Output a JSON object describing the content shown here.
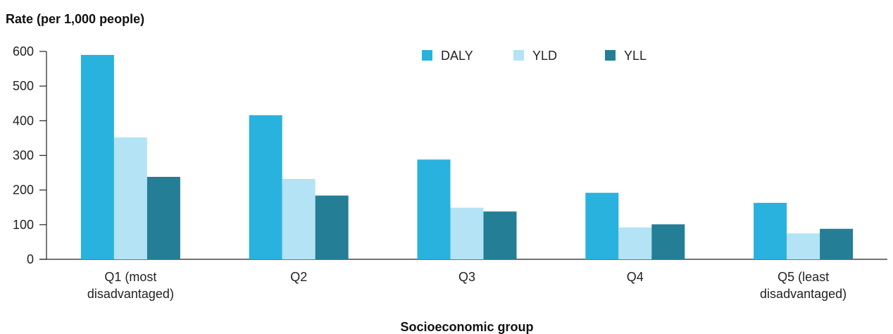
{
  "chart_data": {
    "type": "bar",
    "ylabel": "Rate (per 1,000 people)",
    "xlabel": "Socioeconomic group",
    "categories": [
      [
        "Q1 (most",
        "disadvantaged)"
      ],
      [
        "Q2"
      ],
      [
        "Q3"
      ],
      [
        "Q4"
      ],
      [
        "Q5 (least",
        "disadvantaged)"
      ]
    ],
    "series": [
      {
        "name": "DALY",
        "color": "#29b2de",
        "values": [
          590,
          416,
          288,
          192,
          163
        ]
      },
      {
        "name": "YLD",
        "color": "#b3e3f5",
        "values": [
          352,
          232,
          149,
          92,
          75
        ]
      },
      {
        "name": "YLL",
        "color": "#237e96",
        "values": [
          238,
          184,
          138,
          101,
          88
        ]
      }
    ],
    "ylim": [
      0,
      600
    ],
    "yticks": [
      0,
      100,
      200,
      300,
      400,
      500,
      600
    ],
    "grid": false,
    "legend_position": "top-center"
  }
}
